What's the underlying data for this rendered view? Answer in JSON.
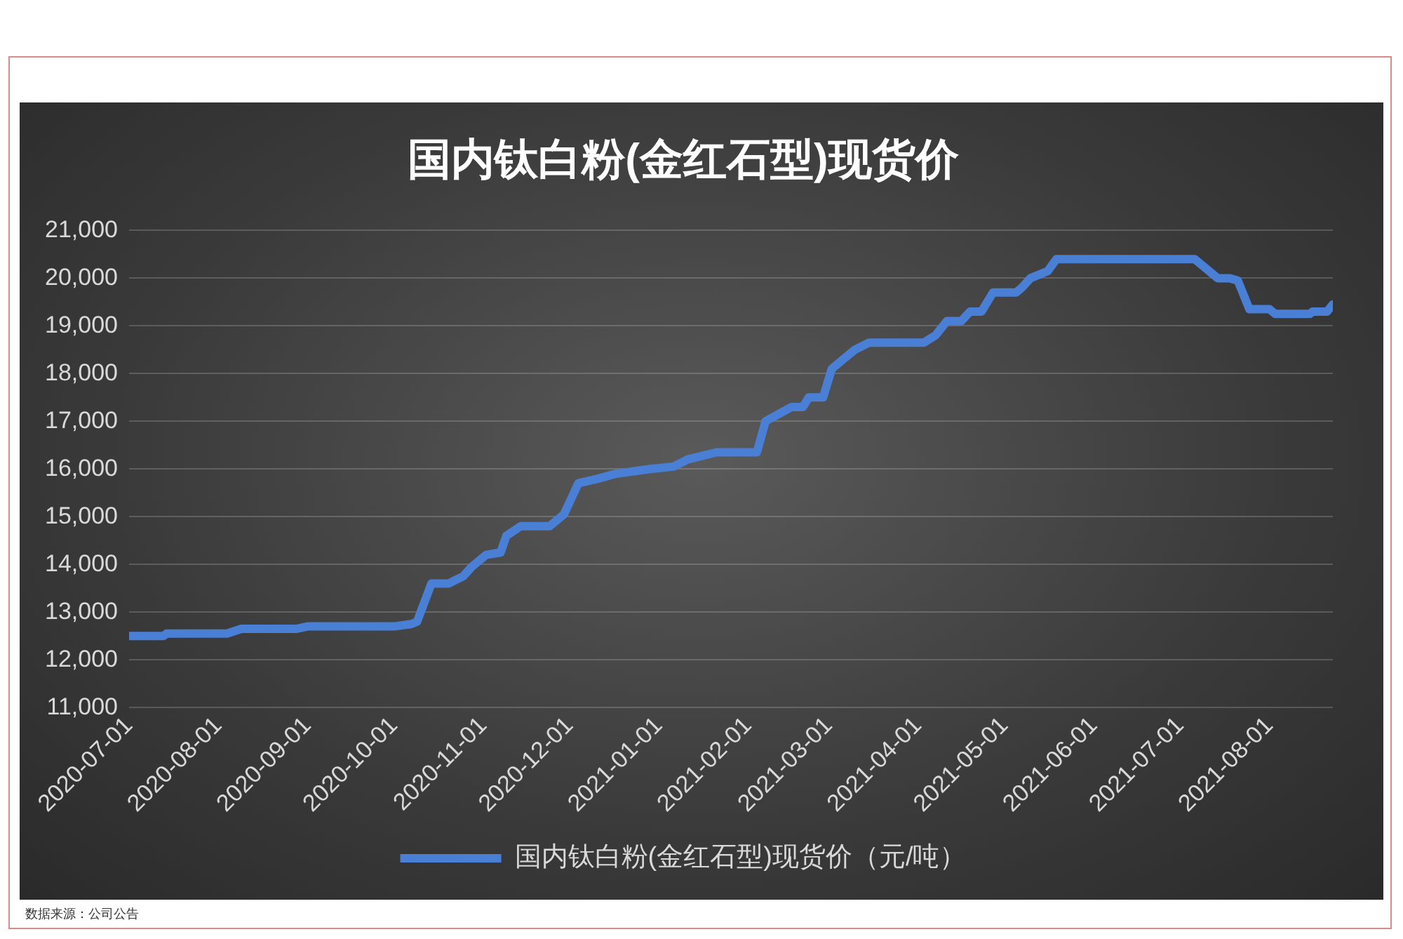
{
  "chart_data": {
    "type": "line",
    "title": "国内钛白粉(金红石型)现货价",
    "x": [
      "2020-07-01",
      "2020-07-13",
      "2020-07-14",
      "2020-08-04",
      "2020-08-09",
      "2020-08-28",
      "2020-09-01",
      "2020-10-01",
      "2020-10-07",
      "2020-10-09",
      "2020-10-14",
      "2020-10-20",
      "2020-10-25",
      "2020-10-28",
      "2020-11-02",
      "2020-11-07",
      "2020-11-09",
      "2020-11-14",
      "2020-11-24",
      "2020-11-29",
      "2020-12-04",
      "2020-12-11",
      "2020-12-17",
      "2020-12-29",
      "2021-01-06",
      "2021-01-11",
      "2021-01-21",
      "2021-02-04",
      "2021-02-07",
      "2021-02-16",
      "2021-02-20",
      "2021-02-22",
      "2021-02-27",
      "2021-03-02",
      "2021-03-06",
      "2021-03-10",
      "2021-03-15",
      "2021-04-03",
      "2021-04-07",
      "2021-04-11",
      "2021-04-16",
      "2021-04-19",
      "2021-04-23",
      "2021-04-27",
      "2021-05-05",
      "2021-05-07",
      "2021-05-10",
      "2021-05-16",
      "2021-05-19",
      "2021-07-06",
      "2021-07-14",
      "2021-07-18",
      "2021-07-21",
      "2021-07-25",
      "2021-08-01",
      "2021-08-03",
      "2021-08-15",
      "2021-08-16",
      "2021-08-21",
      "2021-08-23"
    ],
    "series": [
      {
        "name": "国内钛白粉(金红石型)现货价（元/吨）",
        "color": "#4a7fd6",
        "values": [
          12500,
          12500,
          12550,
          12550,
          12650,
          12650,
          12700,
          12700,
          12750,
          12800,
          13600,
          13600,
          13750,
          13950,
          14200,
          14250,
          14600,
          14800,
          14800,
          15050,
          15700,
          15800,
          15900,
          16000,
          16050,
          16200,
          16350,
          16350,
          17000,
          17300,
          17300,
          17500,
          17500,
          18100,
          18300,
          18500,
          18650,
          18650,
          18800,
          19100,
          19100,
          19300,
          19300,
          19700,
          19700,
          19800,
          20000,
          20150,
          20400,
          20400,
          20000,
          20000,
          19950,
          19350,
          19350,
          19250,
          19250,
          19300,
          19300,
          19450
        ]
      }
    ],
    "xlim": [
      "2020-07-01",
      "2021-08-23"
    ],
    "xticks": [
      "2020-07-01",
      "2020-08-01",
      "2020-09-01",
      "2020-10-01",
      "2020-11-01",
      "2020-12-01",
      "2021-01-01",
      "2021-02-01",
      "2021-03-01",
      "2021-04-01",
      "2021-05-01",
      "2021-06-01",
      "2021-07-01",
      "2021-08-01"
    ],
    "ylim": [
      11000,
      21000
    ],
    "yticks": [
      {
        "value": 11000,
        "label": "11,000"
      },
      {
        "value": 12000,
        "label": "12,000"
      },
      {
        "value": 13000,
        "label": "13,000"
      },
      {
        "value": 14000,
        "label": "14,000"
      },
      {
        "value": 15000,
        "label": "15,000"
      },
      {
        "value": 16000,
        "label": "16,000"
      },
      {
        "value": 17000,
        "label": "17,000"
      },
      {
        "value": 18000,
        "label": "18,000"
      },
      {
        "value": 19000,
        "label": "19,000"
      },
      {
        "value": 20000,
        "label": "20,000"
      },
      {
        "value": 21000,
        "label": "21,000"
      }
    ],
    "grid": "y",
    "legend": "bottom",
    "marker": "none",
    "line_style": "solid",
    "annotations": [
      "数据来源：公司公告"
    ]
  }
}
